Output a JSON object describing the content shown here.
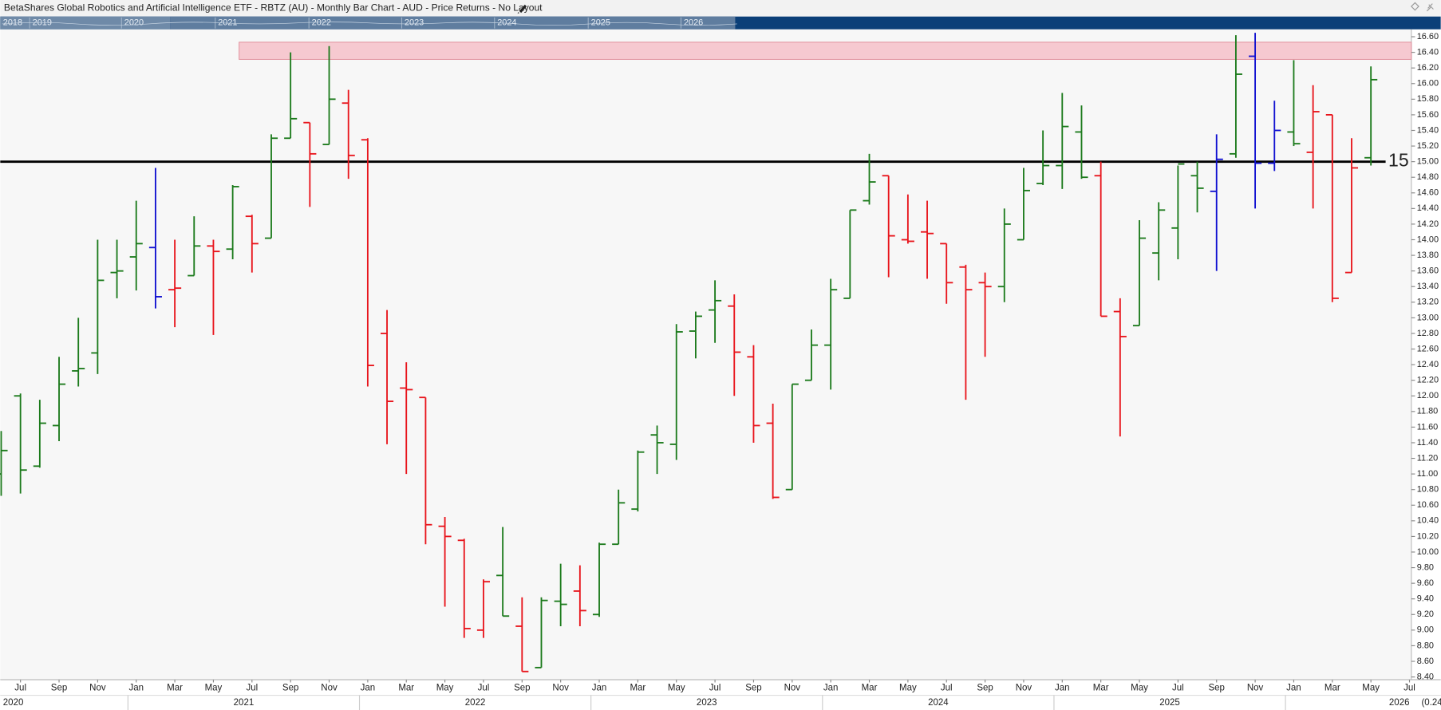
{
  "title": "BetaShares Global Robotics and Artificial Intelligence ETF - RBTZ (AU) - Monthly Bar Chart - AUD - Price Returns - No Layout",
  "navigator_labels": [
    "2018",
    "2019",
    "2020",
    "2021",
    "2022",
    "2023",
    "2024",
    "2025",
    "2026"
  ],
  "footer_label": "(0.24",
  "chart_data": {
    "type": "ohlc",
    "x": [
      "2020-06",
      "2020-07",
      "2020-08",
      "2020-09",
      "2020-10",
      "2020-11",
      "2020-12",
      "2021-01",
      "2021-02",
      "2021-03",
      "2021-04",
      "2021-05",
      "2021-06",
      "2021-07",
      "2021-08",
      "2021-09",
      "2021-10",
      "2021-11",
      "2021-12",
      "2022-01",
      "2022-02",
      "2022-03",
      "2022-04",
      "2022-05",
      "2022-06",
      "2022-07",
      "2022-08",
      "2022-09",
      "2022-10",
      "2022-11",
      "2022-12",
      "2023-01",
      "2023-02",
      "2023-03",
      "2023-04",
      "2023-05",
      "2023-06",
      "2023-07",
      "2023-08",
      "2023-09",
      "2023-10",
      "2023-11",
      "2023-12",
      "2024-01",
      "2024-02",
      "2024-03",
      "2024-04",
      "2024-05",
      "2024-06",
      "2024-07",
      "2024-08",
      "2024-09",
      "2024-10",
      "2024-11",
      "2024-12",
      "2025-01",
      "2025-02",
      "2025-03",
      "2025-04",
      "2025-05",
      "2025-06",
      "2025-07",
      "2025-08",
      "2025-09",
      "2025-10",
      "2025-11",
      "2025-12",
      "2026-01",
      "2026-02",
      "2026-03",
      "2026-04",
      "2026-05"
    ],
    "open": [
      11.0,
      12.0,
      11.1,
      11.62,
      12.32,
      12.55,
      13.58,
      13.78,
      13.9,
      13.36,
      13.54,
      13.92,
      13.88,
      14.3,
      14.02,
      15.3,
      15.5,
      15.22,
      15.75,
      15.28,
      12.8,
      12.1,
      11.98,
      10.33,
      10.15,
      9.0,
      9.7,
      9.05,
      8.52,
      9.37,
      9.5,
      9.2,
      10.1,
      10.55,
      11.5,
      11.38,
      12.83,
      13.1,
      13.15,
      12.5,
      11.65,
      10.8,
      12.2,
      12.65,
      13.25,
      14.5,
      14.82,
      14.0,
      14.1,
      13.95,
      13.65,
      13.45,
      13.4,
      14.0,
      14.72,
      14.95,
      15.38,
      14.82,
      13.08,
      12.9,
      13.83,
      14.15,
      14.82,
      14.62,
      15.1,
      16.35,
      14.98,
      15.38,
      15.12,
      15.6,
      13.58,
      15.05
    ],
    "high": [
      11.55,
      12.03,
      11.95,
      12.5,
      13.0,
      14.0,
      14.0,
      14.5,
      14.92,
      14.0,
      14.3,
      14.0,
      14.7,
      14.32,
      15.35,
      16.4,
      15.5,
      16.48,
      15.92,
      15.3,
      13.1,
      12.43,
      11.98,
      10.45,
      10.17,
      9.65,
      10.32,
      9.42,
      9.42,
      9.85,
      9.83,
      10.12,
      10.8,
      11.3,
      11.62,
      12.92,
      13.08,
      13.48,
      13.3,
      12.65,
      11.9,
      12.15,
      12.85,
      13.5,
      14.38,
      15.1,
      14.82,
      14.58,
      14.5,
      13.95,
      13.68,
      13.58,
      14.4,
      14.92,
      15.4,
      15.88,
      15.72,
      15.0,
      13.25,
      14.25,
      14.48,
      14.95,
      15.0,
      15.35,
      16.62,
      16.65,
      15.78,
      16.3,
      15.98,
      15.6,
      15.3,
      16.22
    ],
    "low": [
      10.72,
      10.75,
      11.08,
      11.42,
      12.12,
      12.28,
      13.25,
      13.35,
      13.12,
      12.88,
      13.54,
      12.78,
      13.75,
      13.58,
      14.02,
      15.3,
      14.42,
      15.22,
      14.78,
      12.12,
      11.38,
      11.0,
      10.1,
      9.3,
      8.9,
      8.9,
      9.18,
      8.47,
      8.52,
      9.05,
      9.05,
      9.17,
      10.1,
      10.52,
      11.0,
      11.18,
      12.48,
      12.68,
      12.0,
      11.4,
      10.68,
      10.8,
      12.2,
      12.08,
      13.25,
      14.45,
      13.52,
      13.95,
      13.5,
      13.18,
      11.95,
      12.5,
      13.2,
      14.0,
      14.7,
      14.65,
      14.78,
      13.02,
      11.48,
      12.9,
      13.48,
      13.75,
      14.35,
      13.6,
      15.05,
      14.4,
      14.88,
      15.2,
      14.4,
      13.2,
      13.58,
      14.95
    ],
    "close": [
      11.3,
      11.05,
      11.65,
      12.15,
      12.35,
      13.48,
      13.6,
      13.95,
      13.27,
      13.38,
      13.92,
      13.85,
      14.68,
      13.95,
      15.3,
      15.55,
      15.1,
      15.8,
      15.08,
      12.39,
      11.93,
      12.08,
      10.35,
      10.2,
      9.02,
      9.62,
      9.18,
      8.47,
      9.38,
      9.33,
      9.25,
      10.1,
      10.63,
      11.28,
      11.4,
      12.82,
      13.02,
      13.22,
      12.56,
      11.62,
      10.7,
      12.15,
      12.65,
      13.36,
      14.38,
      14.74,
      14.05,
      13.98,
      14.08,
      13.45,
      13.36,
      13.4,
      14.2,
      14.63,
      14.95,
      15.45,
      14.8,
      13.02,
      12.76,
      14.02,
      14.38,
      14.97,
      14.66,
      15.03,
      16.12,
      14.98,
      15.4,
      15.23,
      15.64,
      13.25,
      14.92,
      16.05
    ],
    "colors": [
      "#1b7a1b",
      "#1b7a1b",
      "#1b7a1b",
      "#1b7a1b",
      "#1b7a1b",
      "#1b7a1b",
      "#1b7a1b",
      "#1b7a1b",
      "#1010d0",
      "#e8141b",
      "#1b7a1b",
      "#e8141b",
      "#1b7a1b",
      "#e8141b",
      "#1b7a1b",
      "#1b7a1b",
      "#e8141b",
      "#1b7a1b",
      "#e8141b",
      "#e8141b",
      "#e8141b",
      "#e8141b",
      "#e8141b",
      "#e8141b",
      "#e8141b",
      "#e8141b",
      "#1b7a1b",
      "#e8141b",
      "#1b7a1b",
      "#1b7a1b",
      "#e8141b",
      "#1b7a1b",
      "#1b7a1b",
      "#1b7a1b",
      "#1b7a1b",
      "#1b7a1b",
      "#1b7a1b",
      "#1b7a1b",
      "#e8141b",
      "#e8141b",
      "#e8141b",
      "#1b7a1b",
      "#1b7a1b",
      "#1b7a1b",
      "#1b7a1b",
      "#1b7a1b",
      "#e8141b",
      "#e8141b",
      "#e8141b",
      "#e8141b",
      "#e8141b",
      "#e8141b",
      "#1b7a1b",
      "#1b7a1b",
      "#1b7a1b",
      "#1b7a1b",
      "#1b7a1b",
      "#e8141b",
      "#e8141b",
      "#1b7a1b",
      "#1b7a1b",
      "#1b7a1b",
      "#1b7a1b",
      "#1010d0",
      "#1b7a1b",
      "#1010d0",
      "#1010d0",
      "#1b7a1b",
      "#e8141b",
      "#e8141b",
      "#e8141b",
      "#1b7a1b"
    ],
    "xlim": [
      "2020-06",
      "2026-08"
    ],
    "xticks": [
      {
        "value": "2020-07",
        "label": "Jul"
      },
      {
        "value": "2020-09",
        "label": "Sep"
      },
      {
        "value": "2020-11",
        "label": "Nov"
      },
      {
        "value": "2021-01",
        "label": "Jan"
      },
      {
        "value": "2021-03",
        "label": "Mar"
      },
      {
        "value": "2021-05",
        "label": "May"
      },
      {
        "value": "2021-07",
        "label": "Jul"
      },
      {
        "value": "2021-09",
        "label": "Sep"
      },
      {
        "value": "2021-11",
        "label": "Nov"
      },
      {
        "value": "2022-01",
        "label": "Jan"
      },
      {
        "value": "2022-03",
        "label": "Mar"
      },
      {
        "value": "2022-05",
        "label": "May"
      },
      {
        "value": "2022-07",
        "label": "Jul"
      },
      {
        "value": "2022-09",
        "label": "Sep"
      },
      {
        "value": "2022-11",
        "label": "Nov"
      },
      {
        "value": "2023-01",
        "label": "Jan"
      },
      {
        "value": "2023-03",
        "label": "Mar"
      },
      {
        "value": "2023-05",
        "label": "May"
      },
      {
        "value": "2023-07",
        "label": "Jul"
      },
      {
        "value": "2023-09",
        "label": "Sep"
      },
      {
        "value": "2023-11",
        "label": "Nov"
      },
      {
        "value": "2024-01",
        "label": "Jan"
      },
      {
        "value": "2024-03",
        "label": "Mar"
      },
      {
        "value": "2024-05",
        "label": "May"
      },
      {
        "value": "2024-07",
        "label": "Jul"
      },
      {
        "value": "2024-09",
        "label": "Sep"
      },
      {
        "value": "2024-11",
        "label": "Nov"
      },
      {
        "value": "2025-01",
        "label": "Jan"
      },
      {
        "value": "2025-03",
        "label": "Mar"
      },
      {
        "value": "2025-05",
        "label": "May"
      },
      {
        "value": "2025-07",
        "label": "Jul"
      },
      {
        "value": "2025-09",
        "label": "Sep"
      },
      {
        "value": "2025-11",
        "label": "Nov"
      },
      {
        "value": "2026-01",
        "label": "Jan"
      },
      {
        "value": "2026-03",
        "label": "Mar"
      },
      {
        "value": "2026-05",
        "label": "May"
      },
      {
        "value": "2026-07",
        "label": "Jul"
      }
    ],
    "years": [
      "2020",
      "2021",
      "2022",
      "2023",
      "2024",
      "2025",
      "2026"
    ],
    "ylim": [
      8.365,
      16.694
    ],
    "yticks": [
      {
        "value": 8.4,
        "label": "8.40"
      },
      {
        "value": 8.6,
        "label": "8.60"
      },
      {
        "value": 8.8,
        "label": "8.80"
      },
      {
        "value": 9.0,
        "label": "9.00"
      },
      {
        "value": 9.2,
        "label": "9.20"
      },
      {
        "value": 9.4,
        "label": "9.40"
      },
      {
        "value": 9.6,
        "label": "9.60"
      },
      {
        "value": 9.8,
        "label": "9.80"
      },
      {
        "value": 10.0,
        "label": "10.00"
      },
      {
        "value": 10.2,
        "label": "10.20"
      },
      {
        "value": 10.4,
        "label": "10.40"
      },
      {
        "value": 10.6,
        "label": "10.60"
      },
      {
        "value": 10.8,
        "label": "10.80"
      },
      {
        "value": 11.0,
        "label": "11.00"
      },
      {
        "value": 11.2,
        "label": "11.20"
      },
      {
        "value": 11.4,
        "label": "11.40"
      },
      {
        "value": 11.6,
        "label": "11.60"
      },
      {
        "value": 11.8,
        "label": "11.80"
      },
      {
        "value": 12.0,
        "label": "12.00"
      },
      {
        "value": 12.2,
        "label": "12.20"
      },
      {
        "value": 12.4,
        "label": "12.40"
      },
      {
        "value": 12.6,
        "label": "12.60"
      },
      {
        "value": 12.8,
        "label": "12.80"
      },
      {
        "value": 13.0,
        "label": "13.00"
      },
      {
        "value": 13.2,
        "label": "13.20"
      },
      {
        "value": 13.4,
        "label": "13.40"
      },
      {
        "value": 13.6,
        "label": "13.60"
      },
      {
        "value": 13.8,
        "label": "13.80"
      },
      {
        "value": 14.0,
        "label": "14.00"
      },
      {
        "value": 14.2,
        "label": "14.20"
      },
      {
        "value": 14.4,
        "label": "14.40"
      },
      {
        "value": 14.6,
        "label": "14.60"
      },
      {
        "value": 14.8,
        "label": "14.80"
      },
      {
        "value": 15.0,
        "label": "15.00"
      },
      {
        "value": 15.2,
        "label": "15.20"
      },
      {
        "value": 15.4,
        "label": "15.40"
      },
      {
        "value": 15.6,
        "label": "15.60"
      },
      {
        "value": 15.8,
        "label": "15.80"
      },
      {
        "value": 16.0,
        "label": "16.00"
      },
      {
        "value": 16.2,
        "label": "16.20"
      },
      {
        "value": 16.4,
        "label": "16.40"
      },
      {
        "value": 16.6,
        "label": "16.60"
      }
    ],
    "hline": {
      "value": 15,
      "label": "15"
    },
    "zone": {
      "from": "2021-06",
      "ylim": [
        16.31,
        16.53
      ]
    }
  }
}
